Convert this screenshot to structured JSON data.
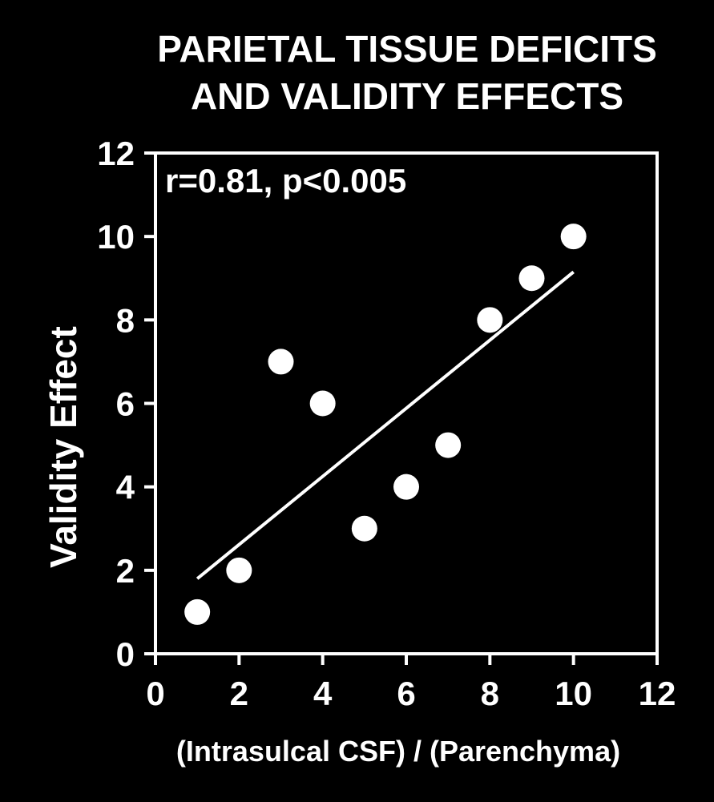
{
  "chart_data": {
    "type": "scatter",
    "title": [
      "PARIETAL TISSUE DEFICITS",
      "AND VALIDITY EFFECTS"
    ],
    "xlabel": "(Intrasulcal CSF) / (Parenchyma)",
    "ylabel": "Validity Effect",
    "xlim": [
      0,
      12
    ],
    "ylim": [
      0,
      12
    ],
    "xticks": [
      0,
      2,
      4,
      6,
      8,
      10,
      12
    ],
    "yticks": [
      0,
      2,
      4,
      6,
      8,
      10,
      12
    ],
    "annotation": "r=0.81, p<0.005",
    "points": [
      {
        "x": 1,
        "y": 1
      },
      {
        "x": 2,
        "y": 2
      },
      {
        "x": 3,
        "y": 7
      },
      {
        "x": 4,
        "y": 6
      },
      {
        "x": 5,
        "y": 3
      },
      {
        "x": 6,
        "y": 4
      },
      {
        "x": 7,
        "y": 5
      },
      {
        "x": 8,
        "y": 8
      },
      {
        "x": 9,
        "y": 9
      },
      {
        "x": 10,
        "y": 10
      }
    ],
    "fit_line": {
      "x": [
        1,
        10
      ],
      "y": [
        1.8,
        9.15
      ]
    },
    "grid": false,
    "colors": {
      "background": "#000000",
      "foreground": "#ffffff"
    }
  }
}
